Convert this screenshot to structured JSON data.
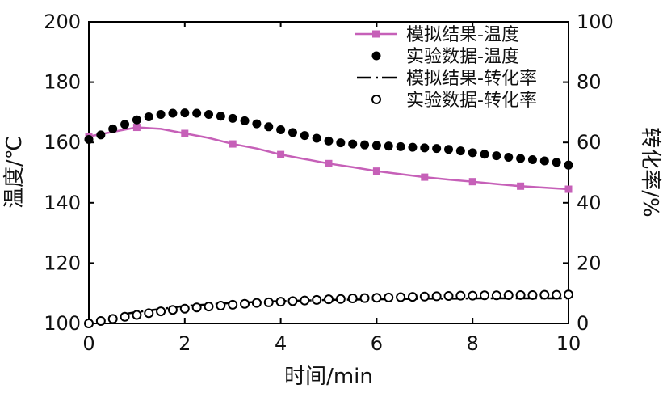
{
  "chart_data": {
    "type": "line",
    "title": "",
    "xlabel": "时间/min",
    "ylabel": "温度/℃",
    "y2label": "转化率/%",
    "xlim": [
      0,
      10
    ],
    "ylim": [
      100,
      200
    ],
    "y2lim": [
      0,
      100
    ],
    "x_ticks": [
      "0",
      "2",
      "4",
      "6",
      "8",
      "10"
    ],
    "y_ticks": [
      "100",
      "120",
      "140",
      "160",
      "180",
      "200"
    ],
    "y2_ticks": [
      "0",
      "20",
      "40",
      "60",
      "80",
      "100"
    ],
    "legend_position": "top-right",
    "series": [
      {
        "name": "模拟结果-温度",
        "axis": "left",
        "style": "line-square",
        "color": "#c660b8",
        "x": [
          0,
          0.5,
          1,
          1.5,
          2,
          2.5,
          3,
          3.5,
          4,
          4.5,
          5,
          5.5,
          6,
          6.5,
          7,
          7.5,
          8,
          8.5,
          9,
          9.5,
          10
        ],
        "y": [
          162,
          163.5,
          165,
          164.5,
          163,
          161.5,
          159.5,
          158,
          156,
          154.5,
          153,
          151.8,
          150.5,
          149.5,
          148.5,
          147.7,
          147,
          146.2,
          145.5,
          145,
          144.5
        ]
      },
      {
        "name": "实验数据-温度",
        "axis": "left",
        "style": "filled-dots",
        "color": "#000000",
        "x": [
          0,
          0.25,
          0.5,
          0.75,
          1,
          1.25,
          1.5,
          1.75,
          2,
          2.25,
          2.5,
          2.75,
          3,
          3.25,
          3.5,
          3.75,
          4,
          4.25,
          4.5,
          4.75,
          5,
          5.25,
          5.5,
          5.75,
          6,
          6.25,
          6.5,
          6.75,
          7,
          7.25,
          7.5,
          7.75,
          8,
          8.25,
          8.5,
          8.75,
          9,
          9.25,
          9.5,
          9.75,
          10
        ],
        "y": [
          161,
          162.5,
          164.5,
          166,
          167.5,
          168.5,
          169.3,
          169.7,
          169.8,
          169.7,
          169.3,
          168.7,
          168,
          167.2,
          166.2,
          165.2,
          164.2,
          163.3,
          162.3,
          161.4,
          160.5,
          159.9,
          159.5,
          159.2,
          159,
          158.8,
          158.6,
          158.4,
          158.2,
          158,
          157.7,
          157.2,
          156.6,
          156.1,
          155.6,
          155.1,
          154.7,
          154.3,
          153.9,
          153.4,
          152.5
        ]
      },
      {
        "name": "模拟结果-转化率",
        "axis": "right",
        "style": "dash-dot",
        "color": "#000000",
        "x": [
          0.7,
          1,
          1.5,
          2,
          2.5,
          3,
          3.5,
          4,
          4.5,
          5,
          5.5,
          6,
          6.5,
          7,
          7.5,
          8,
          8.5,
          9,
          9.5,
          10
        ],
        "y": [
          3,
          3.8,
          4.8,
          5.8,
          6.3,
          6.8,
          7.1,
          7.4,
          7.6,
          7.8,
          7.9,
          8,
          8.1,
          8.2,
          8.2,
          8.3,
          8.3,
          8.3,
          8.3,
          8.3
        ]
      },
      {
        "name": "实验数据-转化率",
        "axis": "right",
        "style": "open-circles",
        "color": "#000000",
        "x": [
          0,
          0.25,
          0.5,
          0.75,
          1,
          1.25,
          1.5,
          1.75,
          2,
          2.25,
          2.5,
          2.75,
          3,
          3.25,
          3.5,
          3.75,
          4,
          4.25,
          4.5,
          4.75,
          5,
          5.25,
          5.5,
          5.75,
          6,
          6.25,
          6.5,
          6.75,
          7,
          7.25,
          7.5,
          7.75,
          8,
          8.25,
          8.5,
          8.75,
          9,
          9.25,
          9.5,
          9.75,
          10
        ],
        "y": [
          0,
          0.8,
          1.5,
          2.2,
          2.8,
          3.4,
          4,
          4.5,
          4.9,
          5.3,
          5.6,
          5.9,
          6.2,
          6.5,
          6.8,
          7,
          7.2,
          7.4,
          7.6,
          7.8,
          8,
          8.1,
          8.3,
          8.4,
          8.5,
          8.6,
          8.7,
          8.8,
          8.9,
          9,
          9.1,
          9.2,
          9.2,
          9.3,
          9.3,
          9.4,
          9.4,
          9.4,
          9.5,
          9.5,
          9.6
        ]
      }
    ]
  }
}
